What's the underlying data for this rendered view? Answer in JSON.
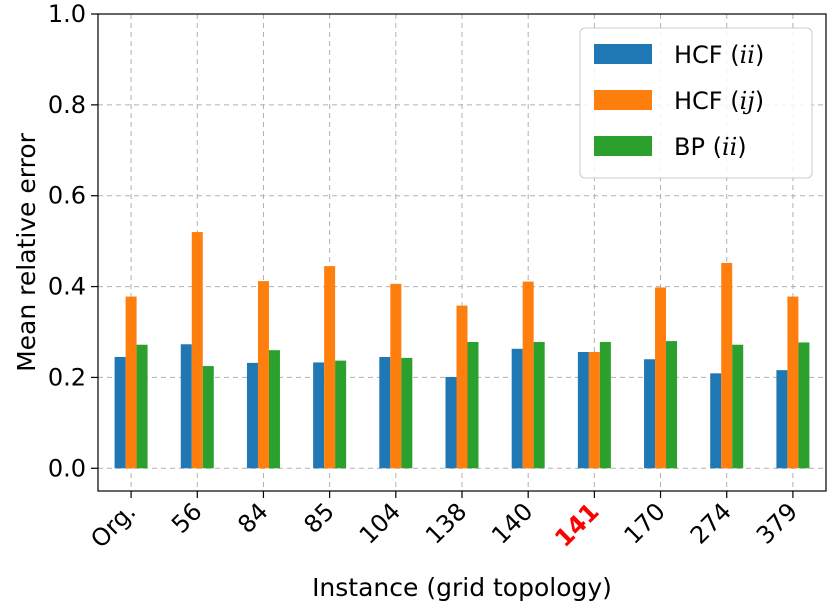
{
  "chart_data": {
    "type": "bar",
    "categories": [
      "Org.",
      "56",
      "84",
      "85",
      "104",
      "138",
      "140",
      "141",
      "170",
      "274",
      "379"
    ],
    "highlighted_category": "141",
    "highlight_color": "#ff0000",
    "series": [
      {
        "name_prefix": "HCF (",
        "name_math": "ii",
        "name_suffix": ")",
        "color": "#1f77b4",
        "values": [
          0.245,
          0.273,
          0.232,
          0.233,
          0.245,
          0.201,
          0.263,
          0.256,
          0.24,
          0.209,
          0.216
        ]
      },
      {
        "name_prefix": "HCF (",
        "name_math": "ij",
        "name_suffix": ")",
        "color": "#ff7f0e",
        "values": [
          0.378,
          0.52,
          0.412,
          0.445,
          0.406,
          0.358,
          0.411,
          0.256,
          0.398,
          0.452,
          0.378
        ]
      },
      {
        "name_prefix": "BP (",
        "name_math": "ii",
        "name_suffix": ")",
        "color": "#2ca02c",
        "values": [
          0.272,
          0.225,
          0.26,
          0.237,
          0.243,
          0.278,
          0.278,
          0.278,
          0.28,
          0.272,
          0.277
        ]
      }
    ],
    "title": "",
    "xlabel": "Instance (grid topology)",
    "ylabel": "Mean relative error",
    "ylim": [
      -0.05,
      1.0
    ],
    "yticks": [
      0.0,
      0.2,
      0.4,
      0.6,
      0.8,
      1.0
    ],
    "ytick_labels": [
      "0.0",
      "0.2",
      "0.4",
      "0.6",
      "0.8",
      "1.0"
    ],
    "grid": true,
    "legend_position": "top-right"
  }
}
